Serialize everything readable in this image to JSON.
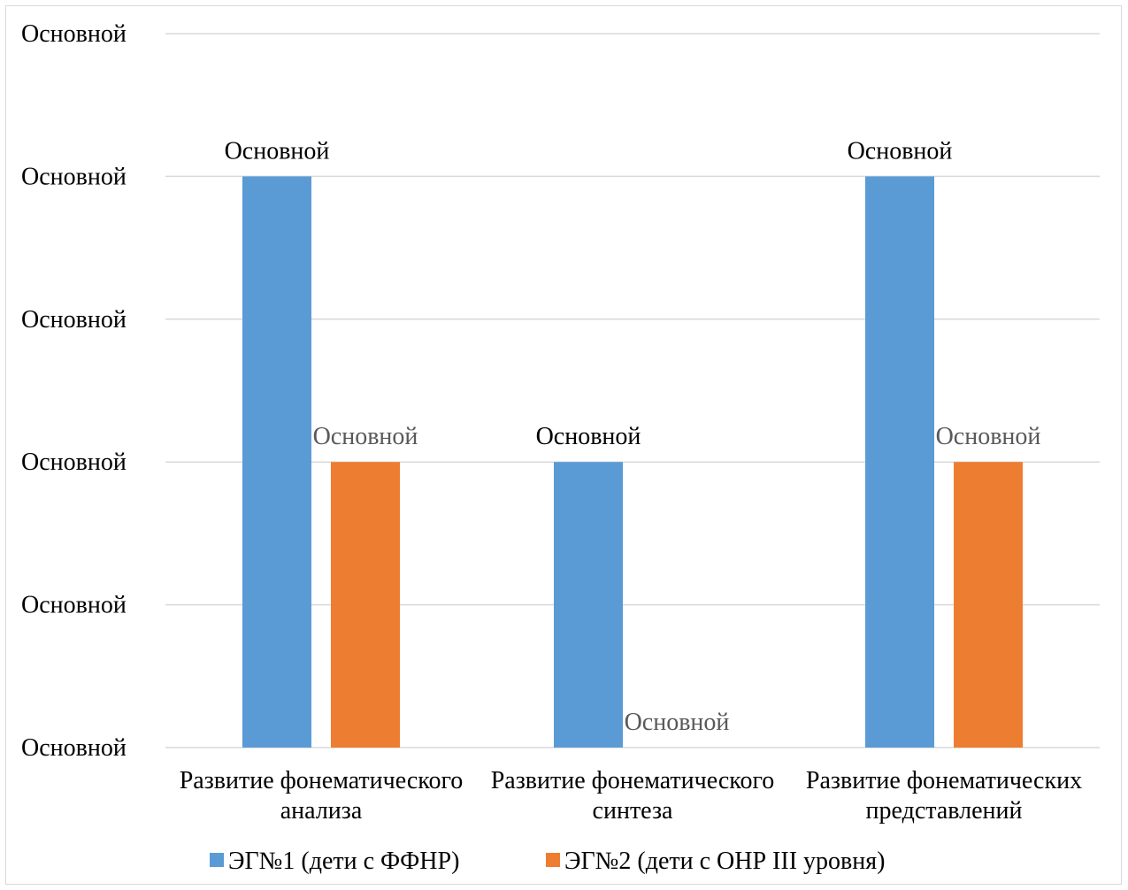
{
  "chart_data": {
    "type": "bar",
    "categories": [
      [
        "Развитие фонематического",
        "анализа"
      ],
      [
        "Развитие фонематического",
        "синтеза"
      ],
      [
        "Развитие фонематических",
        "представлений"
      ]
    ],
    "series": [
      {
        "name": "ЭГ№1 (дети с ФФНР)",
        "color": "#5b9bd5",
        "values": [
          4,
          2,
          4
        ],
        "data_labels": [
          "Основной",
          "Основной",
          "Основной"
        ]
      },
      {
        "name": "ЭГ№2 (дети с ОНР III уровня)",
        "color": "#ed7d31",
        "values": [
          2,
          0,
          2
        ],
        "data_labels": [
          "Основной",
          "Основной",
          "Основной"
        ]
      }
    ],
    "ylim": [
      0,
      5
    ],
    "y_ticks": [
      0,
      1,
      2,
      3,
      4,
      5
    ],
    "y_tick_labels": [
      "Основной",
      "Основной",
      "Основной",
      "Основной",
      "Основной",
      "Основной"
    ],
    "grid": true,
    "legend_position": "bottom",
    "gridline_color": "#d9d9d9"
  }
}
